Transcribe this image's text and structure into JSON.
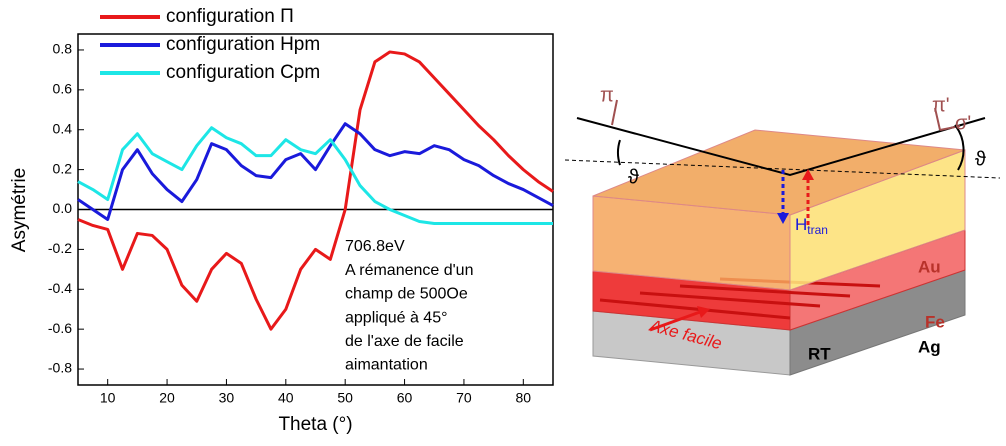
{
  "chart_data": {
    "type": "line",
    "x": [
      5,
      7.5,
      10,
      12.5,
      15,
      17.5,
      20,
      22.5,
      25,
      27.5,
      30,
      32.5,
      35,
      37.5,
      40,
      42.5,
      45,
      47.5,
      50,
      52.5,
      55,
      57.5,
      60,
      62.5,
      65,
      67.5,
      70,
      72.5,
      75,
      77.5,
      80,
      82.5,
      85
    ],
    "series": [
      {
        "name": "configuration Π",
        "color": "#e8191a",
        "values": [
          -0.05,
          -0.08,
          -0.1,
          -0.3,
          -0.12,
          -0.13,
          -0.2,
          -0.38,
          -0.46,
          -0.3,
          -0.22,
          -0.27,
          -0.45,
          -0.6,
          -0.5,
          -0.3,
          -0.2,
          -0.25,
          0.0,
          0.5,
          0.74,
          0.79,
          0.78,
          0.74,
          0.66,
          0.58,
          0.5,
          0.42,
          0.35,
          0.27,
          0.2,
          0.14,
          0.09
        ]
      },
      {
        "name": "configuration Hpm",
        "color": "#1a1adb",
        "values": [
          0.05,
          0.0,
          -0.05,
          0.2,
          0.3,
          0.18,
          0.1,
          0.04,
          0.15,
          0.33,
          0.3,
          0.22,
          0.17,
          0.16,
          0.25,
          0.28,
          0.2,
          0.32,
          0.43,
          0.38,
          0.3,
          0.27,
          0.29,
          0.28,
          0.32,
          0.3,
          0.25,
          0.22,
          0.17,
          0.13,
          0.1,
          0.06,
          0.02
        ]
      },
      {
        "name": "configuration Cpm",
        "color": "#1de6e6",
        "values": [
          0.14,
          0.1,
          0.05,
          0.3,
          0.38,
          0.28,
          0.24,
          0.2,
          0.32,
          0.41,
          0.36,
          0.33,
          0.27,
          0.27,
          0.35,
          0.3,
          0.28,
          0.35,
          0.25,
          0.12,
          0.04,
          0.0,
          -0.03,
          -0.06,
          -0.07,
          -0.07,
          -0.07,
          -0.07,
          -0.07,
          -0.07,
          -0.07,
          -0.07,
          -0.07
        ]
      }
    ],
    "xlabel": "Theta (°)",
    "ylabel": "Asymétrie",
    "xlim": [
      5,
      85
    ],
    "xticks": [
      10,
      20,
      30,
      40,
      50,
      60,
      70,
      80
    ],
    "ylim": [
      -0.88,
      0.88
    ],
    "yticks": [
      -0.8,
      -0.6,
      -0.4,
      -0.2,
      {
        "value": 0,
        "label": "0.0"
      },
      0.2,
      0.4,
      0.6,
      0.8
    ],
    "annotation": [
      "706.8eV",
      "A rémanence d'un",
      "champ de 500Oe",
      "appliqué à 45°",
      "de l'axe de facile",
      "aimantation"
    ]
  },
  "diagram": {
    "pi": "π",
    "theta_left": "ϑ",
    "H": "H",
    "H_sub": "tran",
    "pi_prime": "π'",
    "sigma_prime": "σ'",
    "theta_right": "ϑ",
    "au": "Au",
    "fe": "Fe",
    "ag": "Ag",
    "rt": "RT",
    "easy_axis": "Axe facile"
  }
}
